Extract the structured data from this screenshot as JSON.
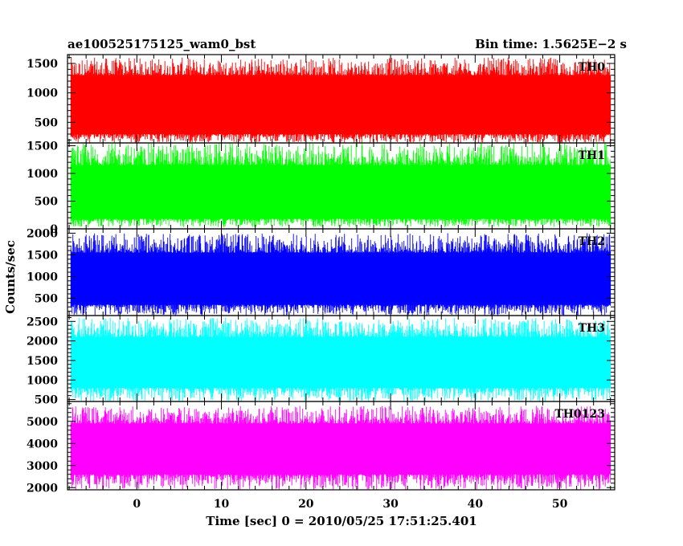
{
  "header": {
    "title": "ae100525175125_wam0_bst",
    "bin_time": "Bin time: 1.5625E−2 s"
  },
  "chart_data": {
    "type": "line",
    "shared_x": {
      "label": "Time [sec] 0 = 2010/05/25 17:51:25.401",
      "range": [
        -8.2,
        56.5
      ],
      "ticks": [
        0,
        10,
        20,
        30,
        40,
        50
      ],
      "minor_step": 2
    },
    "ylabel": "Counts/sec",
    "data_range": [
      -7.8,
      56.0
    ],
    "panels": [
      {
        "name": "TH0",
        "color": "#ff0000",
        "ylim": [
          150,
          1650
        ],
        "yticks": [
          500,
          1000,
          1500
        ],
        "minor_step": 100,
        "band_low": 300,
        "band_high": 1300,
        "spike_low": 150,
        "spike_high": 1600
      },
      {
        "name": "TH1",
        "color": "#00ff00",
        "ylim": [
          0,
          1550
        ],
        "yticks": [
          0,
          500,
          1000,
          1500
        ],
        "minor_step": 100,
        "band_low": 180,
        "band_high": 1150,
        "spike_low": 30,
        "spike_high": 1550
      },
      {
        "name": "TH2",
        "color": "#0000ff",
        "ylim": [
          100,
          2100
        ],
        "yticks": [
          500,
          1000,
          1500,
          2000
        ],
        "minor_step": 100,
        "band_low": 350,
        "band_high": 1550,
        "spike_low": 100,
        "spike_high": 2000
      },
      {
        "name": "TH3",
        "color": "#00ffff",
        "ylim": [
          450,
          2650
        ],
        "yticks": [
          500,
          1000,
          1500,
          2000,
          2500
        ],
        "minor_step": 100,
        "band_low": 800,
        "band_high": 2100,
        "spike_low": 450,
        "spike_high": 2600
      },
      {
        "name": "TH0123",
        "color": "#ff00ff",
        "ylim": [
          1900,
          5900
        ],
        "yticks": [
          2000,
          3000,
          4000,
          5000
        ],
        "minor_step": 200,
        "band_low": 2600,
        "band_high": 4900,
        "spike_low": 1900,
        "spike_high": 5700
      }
    ]
  }
}
